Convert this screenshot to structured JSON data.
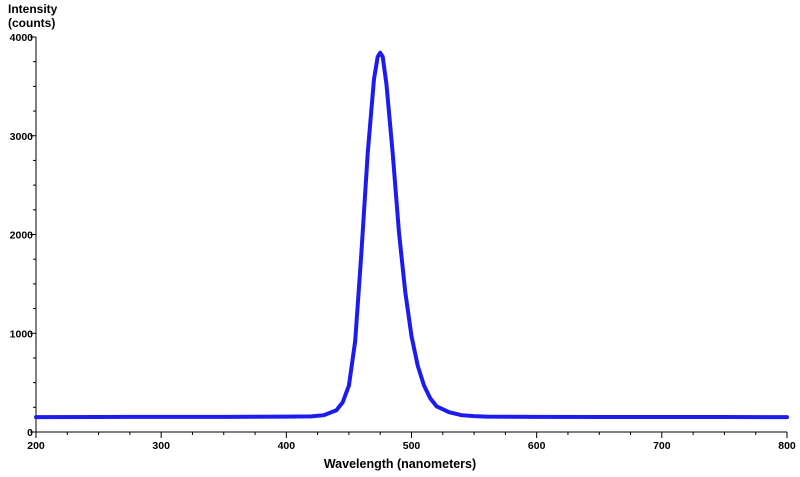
{
  "chart_data": {
    "type": "line",
    "ylabel_lines": [
      "Intensity",
      "(counts)"
    ],
    "xlabel": "Wavelength (nanometers)",
    "xlim": [
      200,
      800
    ],
    "ylim": [
      0,
      4000
    ],
    "x_ticks": [
      200,
      300,
      400,
      500,
      600,
      700,
      800
    ],
    "y_ticks": [
      0,
      1000,
      2000,
      3000,
      4000
    ],
    "grid": false,
    "series_color": "#1c1cf0",
    "series": [
      {
        "x": [
          200,
          250,
          300,
          350,
          400,
          420,
          430,
          440,
          445,
          450,
          455,
          460,
          465,
          470,
          473,
          475,
          477,
          480,
          485,
          490,
          495,
          500,
          505,
          510,
          515,
          520,
          530,
          540,
          550,
          560,
          600,
          650,
          700,
          750,
          800
        ],
        "y": [
          130,
          132,
          133,
          133,
          135,
          138,
          150,
          200,
          280,
          450,
          900,
          1800,
          2800,
          3550,
          3780,
          3820,
          3780,
          3500,
          2800,
          2000,
          1400,
          950,
          650,
          450,
          320,
          240,
          180,
          150,
          140,
          136,
          133,
          132,
          132,
          131,
          130
        ]
      }
    ]
  }
}
